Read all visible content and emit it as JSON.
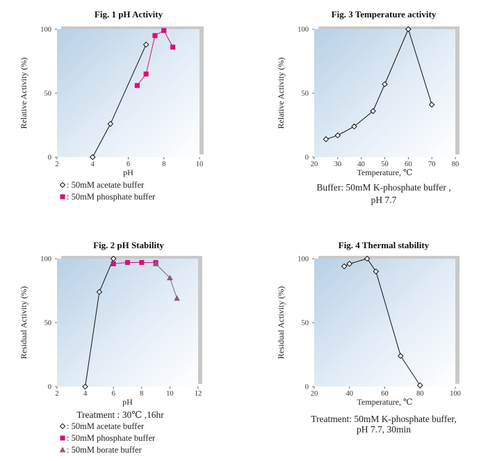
{
  "chart_data": [
    {
      "id": "fig1",
      "type": "line",
      "title": "Fig. 1  pH Activity",
      "xlabel": "pH",
      "ylabel": "Relative Activity (%)",
      "xlim": [
        2,
        10
      ],
      "ylim": [
        0,
        100
      ],
      "xticks": [
        2,
        4,
        6,
        8,
        10
      ],
      "yticks": [
        0,
        50,
        100
      ],
      "series": [
        {
          "name": "50mM acetate buffer",
          "marker": "diamond",
          "color": "#111111",
          "x": [
            4,
            5,
            7
          ],
          "y": [
            0,
            26,
            88
          ]
        },
        {
          "name": "50mM phosphate buffer",
          "marker": "square",
          "color": "#d6127a",
          "x": [
            6.5,
            7,
            7.5,
            8,
            8.5
          ],
          "y": [
            56,
            65,
            95,
            99,
            86
          ]
        }
      ],
      "legend": [
        ": 50mM acetate buffer",
        ": 50mM phosphate buffer"
      ],
      "notes": []
    },
    {
      "id": "fig3",
      "type": "line",
      "title": "Fig. 3  Temperature activity",
      "xlabel": "Temperature, ℃",
      "ylabel": "Relative Activity (%)",
      "xlim": [
        20,
        80
      ],
      "ylim": [
        0,
        100
      ],
      "xticks": [
        20,
        30,
        40,
        50,
        60,
        70,
        80
      ],
      "yticks": [
        0,
        50,
        100
      ],
      "series": [
        {
          "name": "K-phosphate",
          "marker": "diamond",
          "color": "#111111",
          "x": [
            25,
            30,
            37,
            45,
            50,
            60,
            70
          ],
          "y": [
            14,
            17,
            24,
            36,
            57,
            100,
            41
          ]
        }
      ],
      "legend": [],
      "notes": [
        "Buffer: 50mM K-phosphate buffer ,",
        "pH 7.7"
      ]
    },
    {
      "id": "fig2",
      "type": "line",
      "title": "Fig. 2  pH Stability",
      "xlabel": "pH",
      "ylabel": "Residual Activity (%)",
      "xlim": [
        2,
        12
      ],
      "ylim": [
        0,
        100
      ],
      "xticks": [
        2,
        4,
        6,
        8,
        10,
        12
      ],
      "yticks": [
        0,
        50,
        100
      ],
      "series": [
        {
          "name": "50mM acetate buffer",
          "marker": "diamond",
          "color": "#111111",
          "x": [
            4,
            5,
            6
          ],
          "y": [
            0,
            74,
            100
          ]
        },
        {
          "name": "50mM phosphate buffer",
          "marker": "square",
          "color": "#d6127a",
          "x": [
            6,
            7,
            8,
            9
          ],
          "y": [
            96,
            97,
            97,
            97
          ]
        },
        {
          "name": "50mM borate buffer",
          "marker": "triangle",
          "color": "#8a5a78",
          "x": [
            9,
            10,
            10.5
          ],
          "y": [
            96,
            85,
            69
          ]
        }
      ],
      "legend": [
        ": 50mM acetate buffer",
        ": 50mM phosphate buffer",
        ": 50mM borate buffer"
      ],
      "notes": [
        "Treatment : 30℃ ,16hr"
      ]
    },
    {
      "id": "fig4",
      "type": "line",
      "title": "Fig. 4  Thermal stability",
      "xlabel": "Temperature, ℃",
      "ylabel": "Residual Activity (%)",
      "xlim": [
        20,
        100
      ],
      "ylim": [
        0,
        100
      ],
      "xticks": [
        20,
        40,
        60,
        80,
        100
      ],
      "yticks": [
        0,
        50,
        100
      ],
      "series": [
        {
          "name": "K-phosphate",
          "marker": "diamond",
          "color": "#111111",
          "x": [
            37,
            40,
            50,
            55,
            69,
            80
          ],
          "y": [
            94,
            96,
            100,
            90,
            24,
            1
          ]
        }
      ],
      "legend": [],
      "notes": [
        "Treatment: 50mM K-phosphate buffer,",
        "pH 7.7, 30min"
      ]
    }
  ]
}
